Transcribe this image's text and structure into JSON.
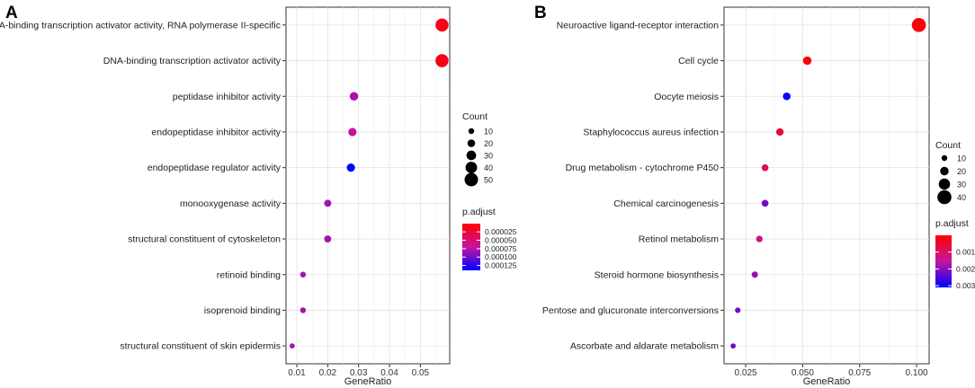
{
  "chart_data": [
    {
      "panel": "A",
      "type": "scatter",
      "xlabel": "GeneRatio",
      "xlim": [
        0.0065,
        0.0595
      ],
      "xticks": [
        0.01,
        0.02,
        0.03,
        0.04,
        0.05
      ],
      "xtick_labels": [
        "0.01",
        "0.02",
        "0.03",
        "0.04",
        "0.05"
      ],
      "grid": true,
      "categories": [
        "DNA-binding transcription activator activity, RNA polymerase II-specific",
        "DNA-binding transcription activator activity",
        "peptidase inhibitor activity",
        "endopeptidase inhibitor activity",
        "endopeptidase regulator activity",
        "monooxygenase activity",
        "structural constituent of cytoskeleton",
        "retinoid binding",
        "isoprenoid binding",
        "structural constituent of skin epidermis"
      ],
      "gene_ratio": [
        0.057,
        0.057,
        0.0285,
        0.028,
        0.0275,
        0.02,
        0.02,
        0.012,
        0.012,
        0.0085
      ],
      "count": [
        48,
        48,
        24,
        23,
        23,
        17,
        17,
        10,
        10,
        7
      ],
      "p_adjust": [
        1e-05,
        1e-05,
        8e-05,
        7e-05,
        0.00014,
        8e-05,
        8e-05,
        8e-05,
        8e-05,
        8e-05
      ],
      "size_legend": {
        "title": "Count",
        "values": [
          10,
          20,
          30,
          40,
          50
        ],
        "labels": [
          "10",
          "20",
          "30",
          "40",
          "50"
        ]
      },
      "color_legend": {
        "title": "p.adjust",
        "range": [
          5e-07,
          0.0001395
        ],
        "ticks": [
          2.5e-05,
          5e-05,
          7.5e-05,
          0.0001,
          0.000125
        ],
        "tick_labels": [
          "0.000025",
          "0.000050",
          "0.000075",
          "0.000100",
          "0.000125"
        ],
        "low_color": "#ff0000",
        "high_color": "#0000ff"
      }
    },
    {
      "panel": "B",
      "type": "scatter",
      "xlabel": "GeneRatio",
      "xlim": [
        0.0155,
        0.1055
      ],
      "xticks": [
        0.025,
        0.05,
        0.075,
        0.1
      ],
      "xtick_labels": [
        "0.025",
        "0.050",
        "0.075",
        "0.100"
      ],
      "grid": true,
      "categories": [
        "Neuroactive ligand-receptor interaction",
        "Cell cycle",
        "Oocyte meiosis",
        "Staphylococcus aureus infection",
        "Drug metabolism - cytochrome P450",
        "Chemical carcinogenesis",
        "Retinol metabolism",
        "Steroid hormone biosynthesis",
        "Pentose and glucuronate interconversions",
        "Ascorbate and aldarate metabolism"
      ],
      "gene_ratio": [
        0.101,
        0.052,
        0.043,
        0.04,
        0.0335,
        0.0335,
        0.031,
        0.029,
        0.0215,
        0.0195
      ],
      "count": [
        40,
        20,
        17,
        16,
        14,
        14,
        13,
        12,
        9,
        8
      ],
      "p_adjust": [
        0.0001,
        0.0001,
        0.003,
        0.0006,
        0.0009,
        0.0022,
        0.0013,
        0.0019,
        0.0022,
        0.0022
      ],
      "size_legend": {
        "title": "Count",
        "values": [
          10,
          20,
          30,
          40
        ],
        "labels": [
          "10",
          "20",
          "30",
          "40"
        ]
      },
      "color_legend": {
        "title": "p.adjust",
        "range": [
          0.0,
          0.0031
        ],
        "ticks": [
          0.001,
          0.002,
          0.003
        ],
        "tick_labels": [
          "0.001",
          "0.002",
          "0.003"
        ],
        "low_color": "#ff0000",
        "high_color": "#0000ff"
      }
    }
  ]
}
